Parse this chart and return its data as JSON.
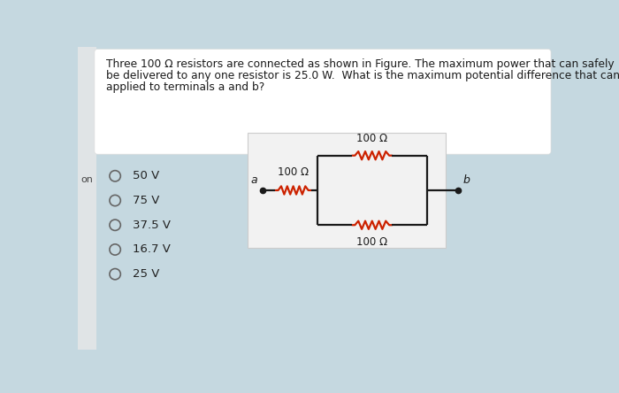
{
  "title_line1": "Three 100 Ω resistors are connected as shown in Figure. The maximum power that can safely",
  "title_line2": "be delivered to any one resistor is 25.0 W.  What is the maximum potential difference that can be",
  "title_line3": "applied to terminals a and b?",
  "bg_color": "#c5d8e0",
  "white_panel_color": "#ffffff",
  "circuit_panel_color": "#f2f2f2",
  "circuit_panel_border": "#cccccc",
  "text_color": "#1a1a1a",
  "circuit_color": "#1a1a1a",
  "resistor_color": "#cc2200",
  "options": [
    "50 V",
    "75 V",
    "37.5 V",
    "16.7 V",
    "25 V"
  ],
  "side_label": "on",
  "sidebar_color": "#e0e4e6"
}
